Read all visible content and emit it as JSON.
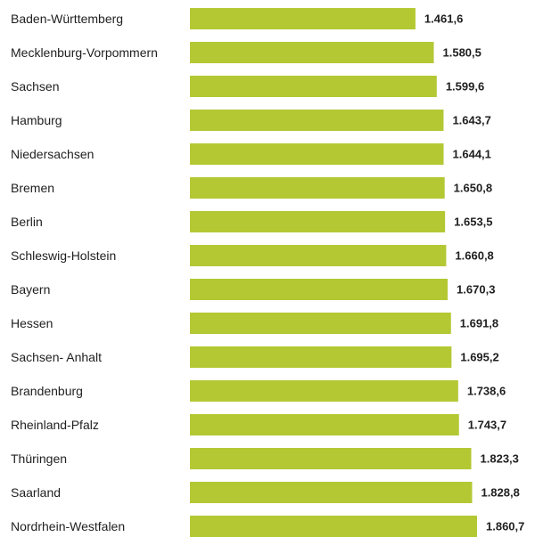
{
  "chart_data": {
    "type": "bar",
    "orientation": "horizontal",
    "title": "",
    "xlabel": "",
    "ylabel": "",
    "categories": [
      "Baden-Württemberg",
      "Mecklenburg-Vorpommern",
      "Sachsen",
      "Hamburg",
      "Niedersachsen",
      "Bremen",
      "Berlin",
      "Schleswig-Holstein",
      "Bayern",
      "Hessen",
      "Sachsen- Anhalt",
      "Brandenburg",
      "Rheinland-Pfalz",
      "Thüringen",
      "Saarland",
      "Nordrhein-Westfalen"
    ],
    "values": [
      1461.6,
      1580.5,
      1599.6,
      1643.7,
      1644.1,
      1650.8,
      1653.5,
      1660.8,
      1670.3,
      1691.8,
      1695.2,
      1738.6,
      1743.7,
      1823.3,
      1828.8,
      1860.7
    ],
    "value_labels": [
      "1.461,6",
      "1.580,5",
      "1.599,6",
      "1.643,7",
      "1.644,1",
      "1.650,8",
      "1.653,5",
      "1.660,8",
      "1.670,3",
      "1.691,8",
      "1.695,2",
      "1.738,6",
      "1.743,7",
      "1.823,3",
      "1.828,8",
      "1.860,7"
    ],
    "xlim": [
      0,
      1860.7
    ],
    "grid": false,
    "legend": "none",
    "bar_color": "#b4c834",
    "text_color": "#1f1f1f"
  }
}
